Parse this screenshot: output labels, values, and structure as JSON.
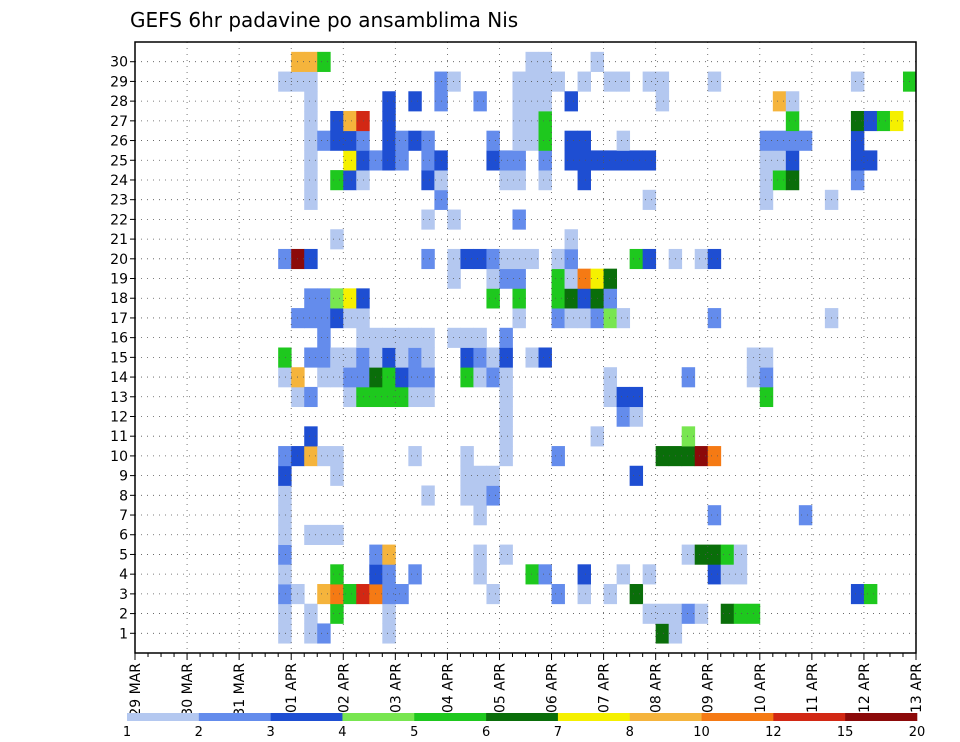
{
  "chart_data": {
    "type": "heatmap",
    "title": "GEFS 6hr padavine po ansamblima Nis",
    "xlabel": "",
    "ylabel": "",
    "y_ticks": [
      1,
      2,
      3,
      4,
      5,
      6,
      7,
      8,
      9,
      10,
      11,
      12,
      13,
      14,
      15,
      16,
      17,
      18,
      19,
      20,
      21,
      22,
      23,
      24,
      25,
      26,
      27,
      28,
      29,
      30
    ],
    "x_ticks": [
      "29 MAR",
      "30 MAR",
      "31 MAR",
      "01 APR",
      "02 APR",
      "03 APR",
      "04 APR",
      "05 APR",
      "06 APR",
      "07 APR",
      "08 APR",
      "09 APR",
      "10 APR",
      "11 APR",
      "12 APR",
      "13 APR"
    ],
    "x_ticks_per_day": 4,
    "grid": true,
    "colorbar": {
      "levels": [
        "1",
        "2",
        "3",
        "4",
        "5",
        "6",
        "7",
        "8",
        "10",
        "12",
        "15",
        "20"
      ],
      "colors": [
        "#b4c8f0",
        "#648cec",
        "#1e4ed2",
        "#78e650",
        "#1ec81e",
        "#0a6e0a",
        "#f5f000",
        "#f5b43c",
        "#f57a14",
        "#d22814",
        "#8c0a0a"
      ]
    },
    "cells": [
      [
        11,
        1,
        1
      ],
      [
        11,
        2,
        1
      ],
      [
        11,
        3,
        2
      ],
      [
        11,
        4,
        1
      ],
      [
        11,
        5,
        2
      ],
      [
        11,
        6,
        1
      ],
      [
        11,
        7,
        1
      ],
      [
        11,
        8,
        1
      ],
      [
        11,
        9,
        3
      ],
      [
        11,
        10,
        2
      ],
      [
        11,
        14,
        1
      ],
      [
        11,
        15,
        5
      ],
      [
        11,
        20,
        2
      ],
      [
        11,
        29,
        1
      ],
      [
        12,
        3,
        1
      ],
      [
        12,
        10,
        3
      ],
      [
        12,
        13,
        1
      ],
      [
        12,
        14,
        8
      ],
      [
        12,
        17,
        2
      ],
      [
        12,
        20,
        11
      ],
      [
        12,
        29,
        1
      ],
      [
        12,
        30,
        8
      ],
      [
        13,
        1,
        1
      ],
      [
        13,
        2,
        1
      ],
      [
        13,
        6,
        1
      ],
      [
        13,
        10,
        8
      ],
      [
        13,
        11,
        3
      ],
      [
        13,
        13,
        2
      ],
      [
        13,
        15,
        2
      ],
      [
        13,
        17,
        2
      ],
      [
        13,
        18,
        2
      ],
      [
        13,
        20,
        3
      ],
      [
        13,
        23,
        1
      ],
      [
        13,
        24,
        1
      ],
      [
        13,
        25,
        1
      ],
      [
        13,
        26,
        1
      ],
      [
        13,
        27,
        1
      ],
      [
        13,
        28,
        1
      ],
      [
        13,
        29,
        1
      ],
      [
        13,
        30,
        8
      ],
      [
        14,
        1,
        2
      ],
      [
        14,
        3,
        8
      ],
      [
        14,
        6,
        1
      ],
      [
        14,
        10,
        1
      ],
      [
        14,
        14,
        1
      ],
      [
        14,
        15,
        2
      ],
      [
        14,
        16,
        2
      ],
      [
        14,
        17,
        2
      ],
      [
        14,
        18,
        2
      ],
      [
        14,
        26,
        2
      ],
      [
        14,
        30,
        5
      ],
      [
        15,
        2,
        5
      ],
      [
        15,
        3,
        9
      ],
      [
        15,
        4,
        5
      ],
      [
        15,
        6,
        1
      ],
      [
        15,
        9,
        1
      ],
      [
        15,
        10,
        1
      ],
      [
        15,
        14,
        1
      ],
      [
        15,
        15,
        1
      ],
      [
        15,
        17,
        3
      ],
      [
        15,
        18,
        4
      ],
      [
        15,
        21,
        1
      ],
      [
        15,
        24,
        5
      ],
      [
        15,
        26,
        3
      ],
      [
        15,
        27,
        3
      ],
      [
        16,
        3,
        5
      ],
      [
        16,
        13,
        1
      ],
      [
        16,
        14,
        2
      ],
      [
        16,
        15,
        1
      ],
      [
        16,
        17,
        1
      ],
      [
        16,
        18,
        7
      ],
      [
        16,
        24,
        3
      ],
      [
        16,
        25,
        7
      ],
      [
        16,
        26,
        3
      ],
      [
        16,
        27,
        8
      ],
      [
        17,
        3,
        10
      ],
      [
        17,
        13,
        5
      ],
      [
        17,
        14,
        2
      ],
      [
        17,
        15,
        2
      ],
      [
        17,
        16,
        1
      ],
      [
        17,
        17,
        1
      ],
      [
        17,
        18,
        3
      ],
      [
        17,
        24,
        1
      ],
      [
        17,
        25,
        3
      ],
      [
        17,
        26,
        2
      ],
      [
        17,
        27,
        10
      ],
      [
        18,
        3,
        9
      ],
      [
        18,
        4,
        3
      ],
      [
        18,
        5,
        2
      ],
      [
        18,
        13,
        5
      ],
      [
        18,
        14,
        6
      ],
      [
        18,
        15,
        1
      ],
      [
        18,
        16,
        1
      ],
      [
        18,
        25,
        2
      ],
      [
        19,
        1,
        1
      ],
      [
        19,
        2,
        1
      ],
      [
        19,
        3,
        2
      ],
      [
        19,
        4,
        2
      ],
      [
        19,
        5,
        8
      ],
      [
        19,
        13,
        5
      ],
      [
        19,
        14,
        5
      ],
      [
        19,
        15,
        3
      ],
      [
        19,
        16,
        1
      ],
      [
        19,
        25,
        3
      ],
      [
        19,
        26,
        3
      ],
      [
        19,
        27,
        3
      ],
      [
        19,
        28,
        3
      ],
      [
        20,
        3,
        2
      ],
      [
        20,
        13,
        5
      ],
      [
        20,
        14,
        3
      ],
      [
        20,
        15,
        1
      ],
      [
        20,
        16,
        1
      ],
      [
        20,
        25,
        2
      ],
      [
        20,
        26,
        2
      ],
      [
        21,
        4,
        2
      ],
      [
        21,
        10,
        1
      ],
      [
        21,
        13,
        1
      ],
      [
        21,
        14,
        2
      ],
      [
        21,
        15,
        2
      ],
      [
        21,
        16,
        1
      ],
      [
        21,
        26,
        3
      ],
      [
        21,
        28,
        3
      ],
      [
        22,
        8,
        1
      ],
      [
        22,
        13,
        1
      ],
      [
        22,
        14,
        2
      ],
      [
        22,
        15,
        1
      ],
      [
        22,
        16,
        1
      ],
      [
        22,
        20,
        2
      ],
      [
        22,
        22,
        1
      ],
      [
        22,
        24,
        3
      ],
      [
        22,
        25,
        2
      ],
      [
        22,
        26,
        2
      ],
      [
        23,
        23,
        2
      ],
      [
        23,
        24,
        1
      ],
      [
        23,
        25,
        3
      ],
      [
        23,
        28,
        2
      ],
      [
        23,
        29,
        2
      ],
      [
        24,
        16,
        1
      ],
      [
        24,
        19,
        1
      ],
      [
        24,
        20,
        1
      ],
      [
        24,
        22,
        1
      ],
      [
        24,
        29,
        1
      ],
      [
        25,
        8,
        1
      ],
      [
        25,
        9,
        1
      ],
      [
        25,
        10,
        1
      ],
      [
        25,
        14,
        5
      ],
      [
        25,
        15,
        3
      ],
      [
        25,
        16,
        1
      ],
      [
        25,
        20,
        3
      ],
      [
        26,
        4,
        1
      ],
      [
        26,
        5,
        1
      ],
      [
        26,
        7,
        1
      ],
      [
        26,
        8,
        1
      ],
      [
        26,
        9,
        1
      ],
      [
        26,
        14,
        1
      ],
      [
        26,
        15,
        2
      ],
      [
        26,
        16,
        1
      ],
      [
        26,
        20,
        3
      ],
      [
        26,
        28,
        2
      ],
      [
        27,
        3,
        1
      ],
      [
        27,
        8,
        2
      ],
      [
        27,
        9,
        1
      ],
      [
        27,
        14,
        2
      ],
      [
        27,
        15,
        1
      ],
      [
        27,
        18,
        5
      ],
      [
        27,
        19,
        1
      ],
      [
        27,
        20,
        2
      ],
      [
        27,
        25,
        3
      ],
      [
        27,
        26,
        2
      ],
      [
        28,
        5,
        1
      ],
      [
        28,
        10,
        1
      ],
      [
        28,
        11,
        1
      ],
      [
        28,
        12,
        1
      ],
      [
        28,
        13,
        1
      ],
      [
        28,
        14,
        1
      ],
      [
        28,
        15,
        3
      ],
      [
        28,
        16,
        2
      ],
      [
        28,
        19,
        2
      ],
      [
        28,
        20,
        1
      ],
      [
        28,
        24,
        1
      ],
      [
        28,
        25,
        2
      ],
      [
        29,
        17,
        1
      ],
      [
        29,
        18,
        5
      ],
      [
        29,
        19,
        2
      ],
      [
        29,
        20,
        1
      ],
      [
        29,
        22,
        2
      ],
      [
        29,
        24,
        1
      ],
      [
        29,
        25,
        2
      ],
      [
        29,
        26,
        1
      ],
      [
        29,
        27,
        1
      ],
      [
        29,
        28,
        1
      ],
      [
        29,
        29,
        1
      ],
      [
        30,
        4,
        5
      ],
      [
        30,
        15,
        1
      ],
      [
        30,
        20,
        1
      ],
      [
        30,
        26,
        1
      ],
      [
        30,
        27,
        1
      ],
      [
        30,
        28,
        1
      ],
      [
        30,
        29,
        1
      ],
      [
        30,
        30,
        1
      ],
      [
        31,
        4,
        2
      ],
      [
        31,
        15,
        3
      ],
      [
        31,
        24,
        1
      ],
      [
        31,
        25,
        2
      ],
      [
        31,
        26,
        5
      ],
      [
        31,
        27,
        5
      ],
      [
        31,
        28,
        1
      ],
      [
        31,
        29,
        1
      ],
      [
        31,
        30,
        1
      ],
      [
        32,
        3,
        2
      ],
      [
        32,
        10,
        2
      ],
      [
        32,
        17,
        2
      ],
      [
        32,
        18,
        5
      ],
      [
        32,
        19,
        5
      ],
      [
        32,
        20,
        1
      ],
      [
        32,
        29,
        1
      ],
      [
        33,
        17,
        1
      ],
      [
        33,
        18,
        6
      ],
      [
        33,
        19,
        1
      ],
      [
        33,
        20,
        2
      ],
      [
        33,
        21,
        1
      ],
      [
        33,
        25,
        3
      ],
      [
        33,
        26,
        3
      ],
      [
        33,
        28,
        3
      ],
      [
        34,
        3,
        1
      ],
      [
        34,
        4,
        3
      ],
      [
        34,
        17,
        1
      ],
      [
        34,
        18,
        3
      ],
      [
        34,
        19,
        9
      ],
      [
        34,
        24,
        3
      ],
      [
        34,
        25,
        3
      ],
      [
        34,
        26,
        3
      ],
      [
        34,
        29,
        1
      ],
      [
        35,
        11,
        1
      ],
      [
        35,
        17,
        2
      ],
      [
        35,
        18,
        6
      ],
      [
        35,
        19,
        7
      ],
      [
        35,
        25,
        3
      ],
      [
        35,
        30,
        1
      ],
      [
        36,
        3,
        1
      ],
      [
        36,
        13,
        1
      ],
      [
        36,
        14,
        1
      ],
      [
        36,
        17,
        4
      ],
      [
        36,
        18,
        2
      ],
      [
        36,
        19,
        6
      ],
      [
        36,
        25,
        3
      ],
      [
        36,
        29,
        1
      ],
      [
        37,
        4,
        1
      ],
      [
        37,
        12,
        2
      ],
      [
        37,
        13,
        3
      ],
      [
        37,
        17,
        1
      ],
      [
        37,
        25,
        3
      ],
      [
        37,
        26,
        1
      ],
      [
        37,
        29,
        1
      ],
      [
        38,
        3,
        6
      ],
      [
        38,
        9,
        3
      ],
      [
        38,
        12,
        1
      ],
      [
        38,
        13,
        3
      ],
      [
        38,
        20,
        5
      ],
      [
        38,
        25,
        3
      ],
      [
        39,
        2,
        1
      ],
      [
        39,
        4,
        1
      ],
      [
        39,
        20,
        3
      ],
      [
        39,
        23,
        1
      ],
      [
        39,
        25,
        3
      ],
      [
        39,
        29,
        1
      ],
      [
        40,
        1,
        6
      ],
      [
        40,
        2,
        1
      ],
      [
        40,
        10,
        6
      ],
      [
        40,
        28,
        1
      ],
      [
        40,
        29,
        1
      ],
      [
        41,
        1,
        1
      ],
      [
        41,
        2,
        1
      ],
      [
        41,
        10,
        6
      ],
      [
        41,
        20,
        1
      ],
      [
        42,
        2,
        2
      ],
      [
        42,
        5,
        1
      ],
      [
        42,
        10,
        6
      ],
      [
        42,
        11,
        4
      ],
      [
        42,
        14,
        2
      ],
      [
        43,
        2,
        1
      ],
      [
        43,
        5,
        6
      ],
      [
        43,
        10,
        11
      ],
      [
        43,
        20,
        1
      ],
      [
        44,
        4,
        3
      ],
      [
        44,
        5,
        6
      ],
      [
        44,
        7,
        2
      ],
      [
        44,
        10,
        9
      ],
      [
        44,
        17,
        2
      ],
      [
        44,
        20,
        3
      ],
      [
        44,
        29,
        1
      ],
      [
        45,
        2,
        6
      ],
      [
        45,
        4,
        1
      ],
      [
        45,
        5,
        5
      ],
      [
        46,
        2,
        5
      ],
      [
        46,
        4,
        1
      ],
      [
        46,
        5,
        1
      ],
      [
        47,
        2,
        5
      ],
      [
        47,
        14,
        1
      ],
      [
        47,
        15,
        1
      ],
      [
        48,
        13,
        5
      ],
      [
        48,
        14,
        2
      ],
      [
        48,
        15,
        1
      ],
      [
        48,
        23,
        1
      ],
      [
        48,
        24,
        1
      ],
      [
        48,
        25,
        1
      ],
      [
        48,
        26,
        2
      ],
      [
        49,
        24,
        5
      ],
      [
        49,
        25,
        1
      ],
      [
        49,
        26,
        2
      ],
      [
        49,
        28,
        8
      ],
      [
        50,
        24,
        6
      ],
      [
        50,
        25,
        3
      ],
      [
        50,
        26,
        2
      ],
      [
        50,
        27,
        5
      ],
      [
        50,
        28,
        1
      ],
      [
        51,
        7,
        2
      ],
      [
        51,
        26,
        2
      ],
      [
        53,
        17,
        1
      ],
      [
        53,
        23,
        1
      ],
      [
        55,
        3,
        3
      ],
      [
        55,
        24,
        2
      ],
      [
        55,
        25,
        3
      ],
      [
        55,
        26,
        3
      ],
      [
        55,
        27,
        6
      ],
      [
        55,
        29,
        1
      ],
      [
        56,
        3,
        5
      ],
      [
        56,
        25,
        3
      ],
      [
        56,
        27,
        3
      ],
      [
        57,
        27,
        5
      ],
      [
        58,
        27,
        7
      ],
      [
        59,
        29,
        5
      ]
    ]
  }
}
